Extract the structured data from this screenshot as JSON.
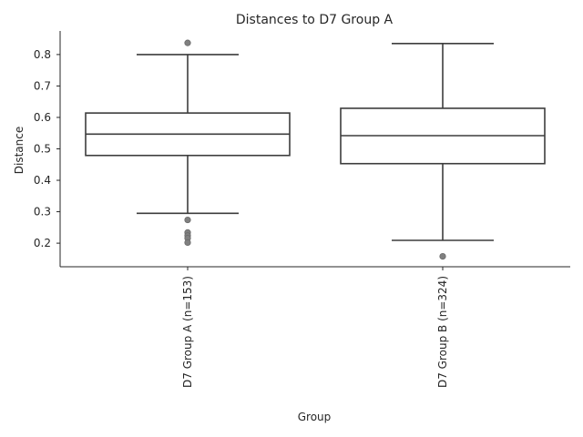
{
  "chart_data": {
    "type": "box",
    "title": "Distances to D7 Group A",
    "xlabel": "Group",
    "ylabel": "Distance",
    "ylim": [
      0.125,
      0.875
    ],
    "yticks": [
      0.2,
      0.3,
      0.4,
      0.5,
      0.6,
      0.7,
      0.8
    ],
    "grid": false,
    "categories": [
      "D7 Group A (n=153)",
      "D7 Group B (n=324)"
    ],
    "boxes": [
      {
        "category": "D7 Group A (n=153)",
        "whisker_low": 0.295,
        "q1": 0.479,
        "median": 0.547,
        "q3": 0.614,
        "whisker_high": 0.8,
        "outliers": [
          0.837,
          0.274,
          0.234,
          0.224,
          0.216,
          0.202
        ]
      },
      {
        "category": "D7 Group B (n=324)",
        "whisker_low": 0.209,
        "q1": 0.453,
        "median": 0.542,
        "q3": 0.629,
        "whisker_high": 0.835,
        "outliers": [
          0.158
        ]
      }
    ]
  }
}
